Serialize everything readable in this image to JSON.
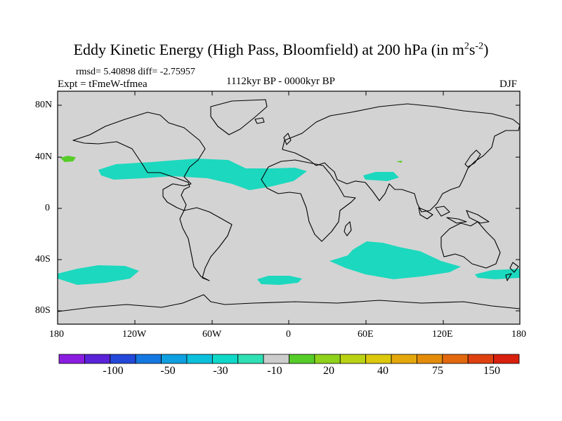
{
  "title": {
    "main": "Eddy Kinetic Energy (High Pass, Bloomfield) at 200 hPa (in m",
    "sup1": "2",
    "mid": "s",
    "sup2": "-2",
    "end": ")"
  },
  "stats": "rmsd= 5.40898 diff= -2.75957",
  "experiment": "Expt = tFmeW-tfmea",
  "period": "1112kyr BP - 0000kyr BP",
  "season": "DJF",
  "map": {
    "land_outline_color": "#000000",
    "background_color": "#d3d3d3",
    "lat_labels": [
      "80N",
      "40N",
      "0",
      "40S",
      "80S"
    ],
    "lon_labels": [
      "180",
      "120W",
      "60W",
      "0",
      "60E",
      "120E",
      "180"
    ]
  },
  "colorbar": {
    "colors": [
      "#8a1de0",
      "#5a23d8",
      "#2448d8",
      "#1478e0",
      "#0ea0e0",
      "#0cc0dc",
      "#10d8c8",
      "#2fe0b4",
      "#cccccc",
      "#56cc28",
      "#8ed21c",
      "#bad214",
      "#dcc80c",
      "#e4a80c",
      "#e48c0a",
      "#e2680e",
      "#de4010",
      "#d8200e"
    ],
    "labels": [
      "-100",
      "-50",
      "-30",
      "-10",
      "20",
      "40",
      "75",
      "150"
    ]
  }
}
